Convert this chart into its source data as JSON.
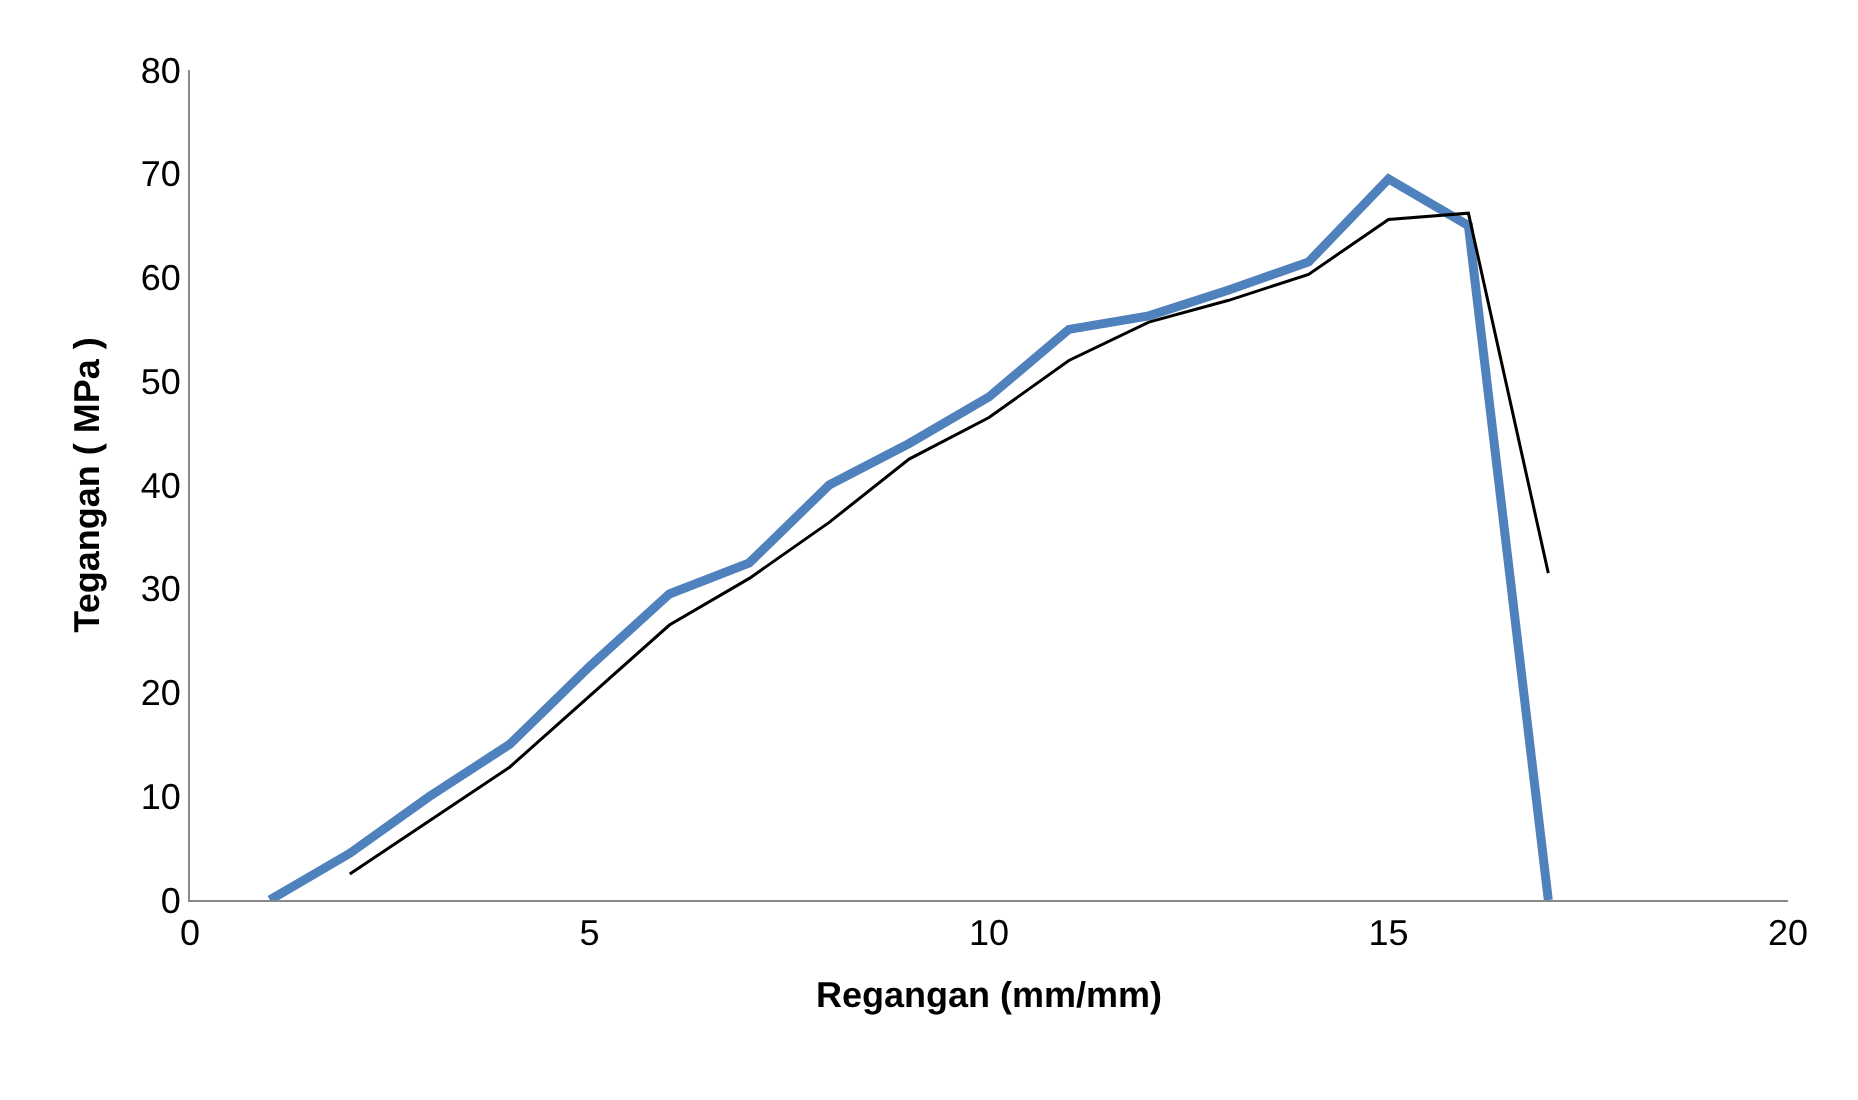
{
  "chart_data": {
    "type": "line",
    "xlabel": "Regangan (mm/mm)",
    "ylabel": "Tegangan ( MPa )",
    "xlim": [
      0,
      20
    ],
    "xticks": [
      0,
      5,
      10,
      15,
      20
    ],
    "ylim": [
      0,
      80
    ],
    "yticks": [
      0,
      10,
      20,
      30,
      40,
      50,
      60,
      70,
      80
    ],
    "series": [
      {
        "color": "#4f81bd",
        "x": [
          1,
          2,
          3,
          4,
          5,
          6,
          7,
          8,
          9,
          10,
          11,
          12,
          13,
          14,
          15,
          16,
          17
        ],
        "values": [
          0,
          4.5,
          10,
          15,
          22.5,
          29.5,
          32.5,
          40,
          44,
          48.5,
          55,
          56.3,
          58.8,
          61.5,
          69.5,
          65,
          0
        ]
      },
      {
        "color": "#000000",
        "x": [
          2,
          4,
          6,
          7,
          8,
          9,
          10,
          11,
          12,
          13,
          14,
          15,
          16,
          17
        ],
        "values": [
          2.5,
          12.8,
          26.5,
          31,
          36.4,
          42.5,
          46.5,
          52,
          55.7,
          57.8,
          60.3,
          65.6,
          66.2,
          31.5
        ]
      }
    ]
  }
}
